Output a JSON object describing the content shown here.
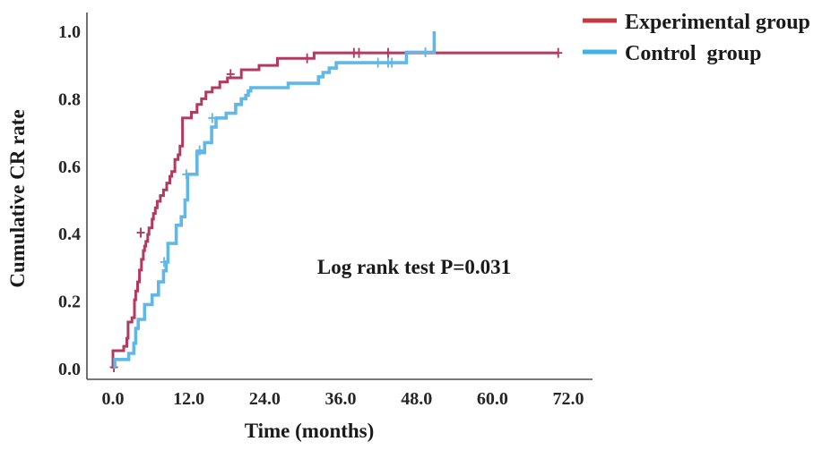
{
  "chart_data": {
    "type": "line",
    "subtype": "kaplan-meier-step",
    "title": "",
    "xlabel": "Time (months)",
    "ylabel": "Cumulative CR rate",
    "annotation": "Log rank test P=0.031",
    "legend_position": "top-right",
    "grid": false,
    "xlim": [
      0,
      76
    ],
    "ylim": [
      0,
      1.0
    ],
    "x_ticks": [
      0,
      12,
      24,
      36,
      48,
      60,
      72
    ],
    "x_tick_labels": [
      "0.0",
      "12.0",
      "24.0",
      "36.0",
      "48.0",
      "60.0",
      "72.0"
    ],
    "y_ticks": [
      0,
      0.2,
      0.4,
      0.6,
      0.8,
      1.0
    ],
    "y_tick_labels": [
      "0.0",
      "0.2",
      "0.4",
      "0.6",
      "0.8",
      "1.0"
    ],
    "series": [
      {
        "name": "Experimental group",
        "color": "#b13a5e",
        "legend_color": "#c2393f",
        "steps": [
          [
            0,
            0
          ],
          [
            0,
            0.053
          ],
          [
            1.7,
            0.066
          ],
          [
            2.2,
            0.09
          ],
          [
            2.4,
            0.138
          ],
          [
            3.0,
            0.151
          ],
          [
            3.4,
            0.204
          ],
          [
            3.6,
            0.23
          ],
          [
            3.9,
            0.257
          ],
          [
            4.2,
            0.292
          ],
          [
            4.5,
            0.324
          ],
          [
            4.8,
            0.35
          ],
          [
            5.0,
            0.363
          ],
          [
            5.2,
            0.377
          ],
          [
            5.5,
            0.398
          ],
          [
            5.7,
            0.417
          ],
          [
            6.2,
            0.443
          ],
          [
            6.4,
            0.46
          ],
          [
            6.7,
            0.477
          ],
          [
            7.0,
            0.496
          ],
          [
            7.5,
            0.513
          ],
          [
            8.0,
            0.53
          ],
          [
            8.5,
            0.55
          ],
          [
            9.0,
            0.57
          ],
          [
            9.3,
            0.584
          ],
          [
            9.8,
            0.62
          ],
          [
            10.3,
            0.634
          ],
          [
            10.6,
            0.66
          ],
          [
            11.0,
            0.743
          ],
          [
            12.4,
            0.76
          ],
          [
            13.3,
            0.783
          ],
          [
            14.0,
            0.8
          ],
          [
            14.7,
            0.82
          ],
          [
            15.7,
            0.833
          ],
          [
            16.9,
            0.85
          ],
          [
            18.1,
            0.862
          ],
          [
            20.3,
            0.886
          ],
          [
            23.1,
            0.899
          ],
          [
            26.0,
            0.92
          ],
          [
            31.8,
            0.936
          ],
          [
            70.5,
            0.936
          ]
        ],
        "censors": [
          [
            0.15,
            0.004
          ],
          [
            4.4,
            0.403
          ],
          [
            18.6,
            0.873
          ],
          [
            30.7,
            0.92
          ],
          [
            38.1,
            0.936
          ],
          [
            38.9,
            0.936
          ],
          [
            43.5,
            0.936
          ],
          [
            70.4,
            0.936
          ]
        ]
      },
      {
        "name": "Control  group",
        "color": "#5fb8e8",
        "legend_color": "#3eb2e8",
        "steps": [
          [
            0.3,
            0
          ],
          [
            0.3,
            0.027
          ],
          [
            2.5,
            0.045
          ],
          [
            3.3,
            0.075
          ],
          [
            3.6,
            0.119
          ],
          [
            4.0,
            0.146
          ],
          [
            5.0,
            0.19
          ],
          [
            6.2,
            0.218
          ],
          [
            7.2,
            0.257
          ],
          [
            8.0,
            0.29
          ],
          [
            8.4,
            0.316
          ],
          [
            8.7,
            0.371
          ],
          [
            10.0,
            0.425
          ],
          [
            10.8,
            0.45
          ],
          [
            11.4,
            0.5
          ],
          [
            11.8,
            0.576
          ],
          [
            13.3,
            0.64
          ],
          [
            14.5,
            0.67
          ],
          [
            15.6,
            0.716
          ],
          [
            16.3,
            0.743
          ],
          [
            17.9,
            0.757
          ],
          [
            19.4,
            0.783
          ],
          [
            20.3,
            0.8
          ],
          [
            21.0,
            0.81
          ],
          [
            21.4,
            0.823
          ],
          [
            21.8,
            0.833
          ],
          [
            27.7,
            0.846
          ],
          [
            32.5,
            0.865
          ],
          [
            33.2,
            0.878
          ],
          [
            34.2,
            0.891
          ],
          [
            35.3,
            0.907
          ],
          [
            46.4,
            0.938
          ],
          [
            50.8,
            1.0
          ]
        ],
        "censors": [
          [
            8.1,
            0.316
          ],
          [
            11.6,
            0.576
          ],
          [
            13.7,
            0.647
          ],
          [
            15.7,
            0.743
          ],
          [
            41.9,
            0.907
          ],
          [
            43.5,
            0.907
          ],
          [
            44.1,
            0.907
          ],
          [
            49.4,
            0.938
          ]
        ]
      }
    ]
  }
}
